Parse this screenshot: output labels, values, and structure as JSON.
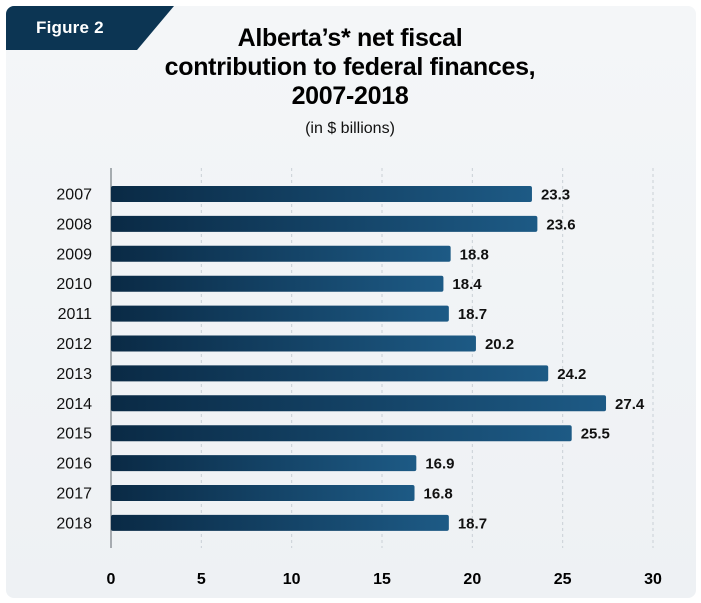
{
  "figure_label": "Figure 2",
  "title_lines": [
    "Alberta’s* net fiscal",
    "contribution to federal finances,",
    "2007-2018"
  ],
  "subtitle": "(in $ billions)",
  "colors": {
    "bar_dark": "#0a2a45",
    "bar_light": "#1d5a85",
    "grid": "#c9d0d6",
    "axis": "#8d9499",
    "tag": "#0c3553"
  },
  "chart_data": {
    "type": "bar",
    "orientation": "horizontal",
    "title": "Alberta’s* net fiscal contribution to federal finances, 2007-2018",
    "subtitle": "(in $ billions)",
    "categories": [
      "2007",
      "2008",
      "2009",
      "2010",
      "2011",
      "2012",
      "2013",
      "2014",
      "2015",
      "2016",
      "2017",
      "2018"
    ],
    "values": [
      23.3,
      23.6,
      18.8,
      18.4,
      18.7,
      20.2,
      24.2,
      27.4,
      25.5,
      16.9,
      16.8,
      18.7
    ],
    "value_labels": [
      "23.3",
      "23.6",
      "18.8",
      "18.4",
      "18.7",
      "20.2",
      "24.2",
      "27.4",
      "25.5",
      "16.9",
      "16.8",
      "18.7"
    ],
    "xlim": [
      0,
      30
    ],
    "xticks": [
      0,
      5,
      10,
      15,
      20,
      25,
      30
    ],
    "xlabel": "",
    "ylabel": "",
    "grid": "vertical dashed",
    "legend": "none"
  }
}
